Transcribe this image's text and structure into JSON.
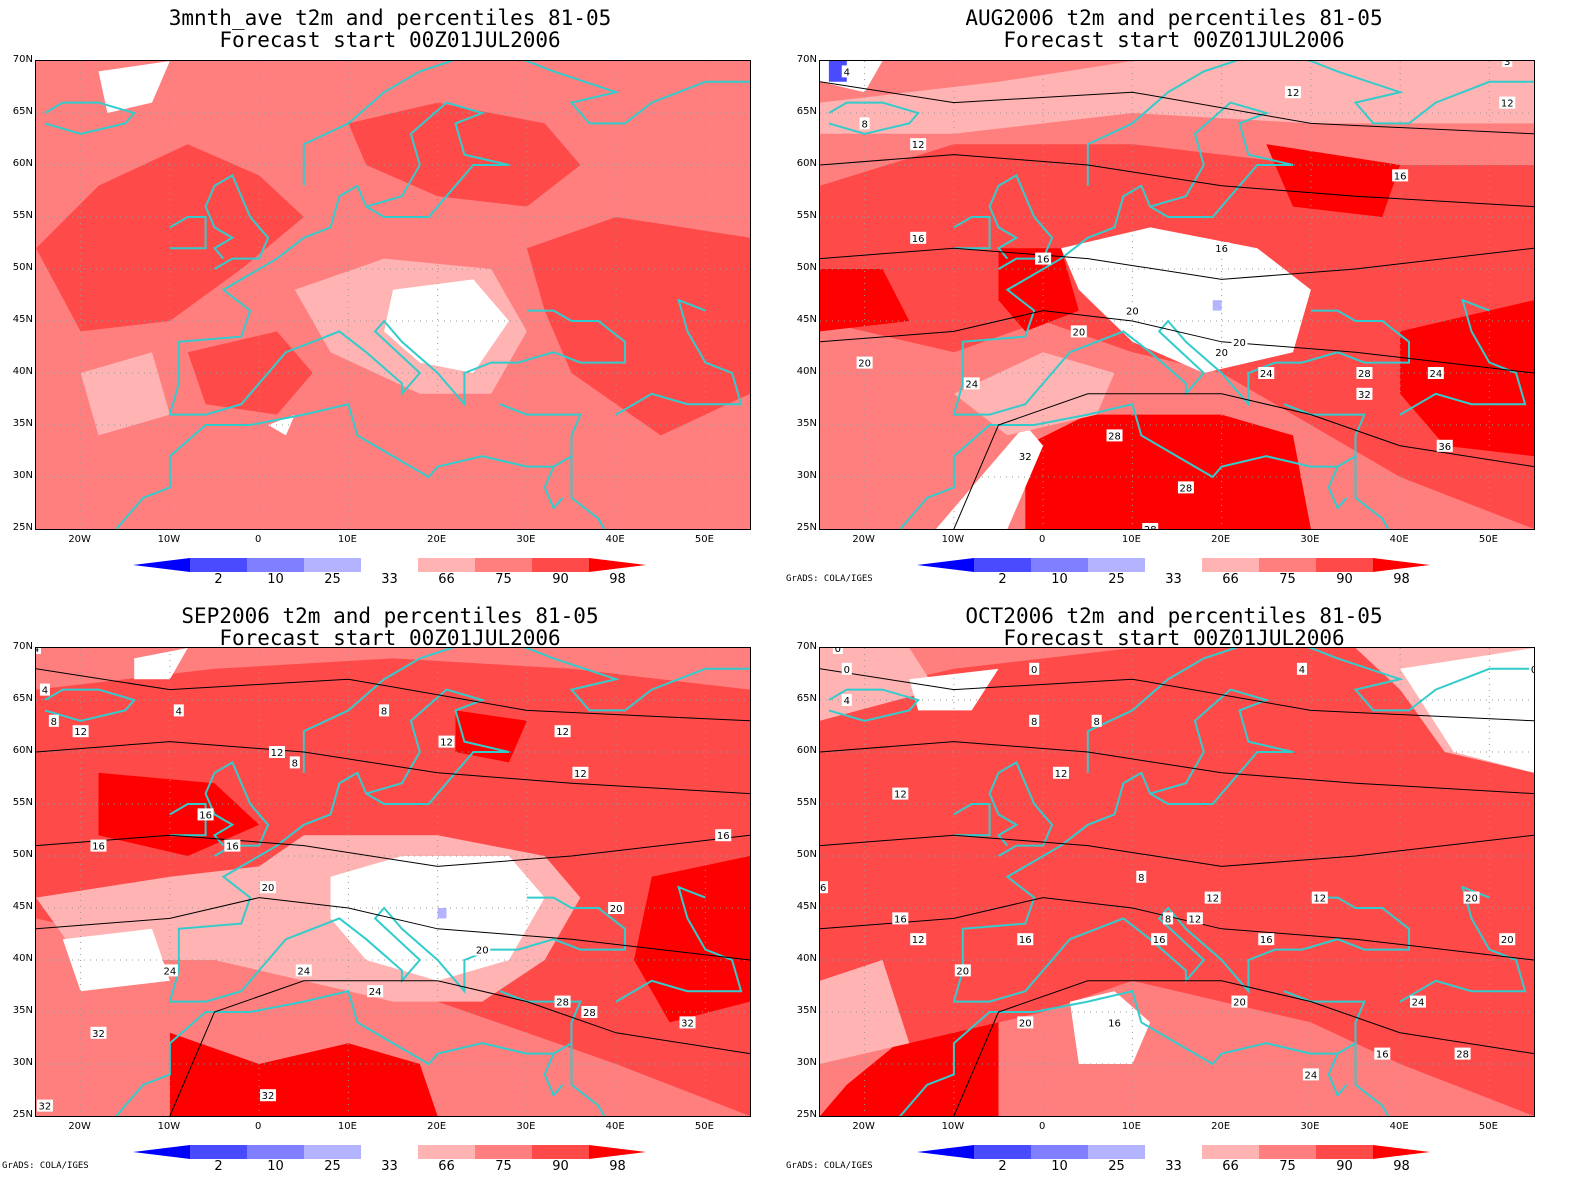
{
  "panels": [
    {
      "title1": "3mnth_ave t2m and percentiles 81-05",
      "title2": "Forecast start 00Z01JUL2006",
      "credit": ""
    },
    {
      "title1": "AUG2006 t2m and percentiles 81-05",
      "title2": "Forecast start 00Z01JUL2006",
      "credit": "GrADS: COLA/IGES"
    },
    {
      "title1": "SEP2006 t2m and percentiles 81-05",
      "title2": "Forecast start 00Z01JUL2006",
      "credit": "GrADS: COLA/IGES"
    },
    {
      "title1": "OCT2006 t2m and percentiles 81-05",
      "title2": "Forecast start 00Z01JUL2006",
      "credit": "GrADS: COLA/IGES"
    }
  ],
  "lat_labels": [
    "70N",
    "65N",
    "60N",
    "55N",
    "50N",
    "45N",
    "40N",
    "35N",
    "30N",
    "25N"
  ],
  "lon_labels": [
    "20W",
    "10W",
    "0",
    "10E",
    "20E",
    "30E",
    "40E",
    "50E"
  ],
  "colorbar": {
    "labels": [
      "2",
      "10",
      "25",
      "33",
      "66",
      "75",
      "90",
      "98"
    ],
    "colors": [
      "#0000ff",
      "#4a4aff",
      "#7f7fff",
      "#b3b3ff",
      "#ffffff",
      "#ffb3b3",
      "#ff7f7f",
      "#ff4a4a",
      "#ff0000"
    ]
  },
  "colors": {
    "coastline": "#33cccc",
    "contour": "#000000",
    "background": "#ffffff"
  },
  "contour_labels": {
    "aug": [
      "4",
      "8",
      "12",
      "12",
      "12",
      "3",
      "16",
      "16",
      "16",
      "16",
      "20",
      "20",
      "20",
      "20",
      "20",
      "24",
      "24",
      "28",
      "28",
      "32",
      "32",
      "24",
      "36",
      "28",
      "28"
    ],
    "sep": [
      "4",
      "4",
      "8",
      "4",
      "8",
      "12",
      "8",
      "12",
      "12",
      "12",
      "16",
      "16",
      "12",
      "16",
      "16",
      "20",
      "20",
      "20",
      "24",
      "24",
      "24",
      "28",
      "28",
      "32",
      "32",
      "32",
      "32"
    ],
    "oct": [
      "0",
      "0",
      "4",
      "8",
      "0",
      "4",
      "8",
      "0",
      "12",
      "12",
      "16",
      "16",
      "12",
      "8",
      "12",
      "8",
      "12",
      "16",
      "16",
      "12",
      "16",
      "20",
      "20",
      "16",
      "20",
      "20",
      "24",
      "24",
      "20",
      "28",
      "16"
    ]
  }
}
